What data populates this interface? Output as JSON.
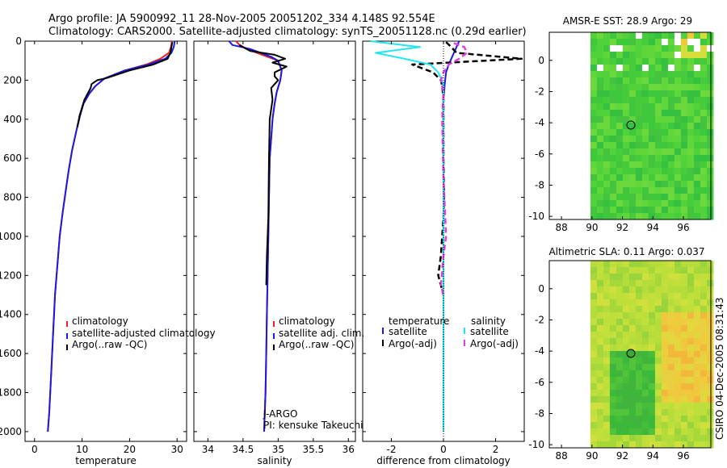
{
  "title": {
    "line1": "Argo profile: JA 5900992_11 28-Nov-2005 20051202_334 4.148S 92.554E",
    "line2": "Climatology: CARS2000. Satellite-adjusted climatology: synTS_20051128.nc (0.29d earlier)"
  },
  "colors": {
    "climatology": "#e8231e",
    "satellite": "#1a1ae6",
    "argo": "#000000",
    "satellite_salinity": "#22e5f0",
    "argo_salinity": "#e040e0"
  },
  "chart_data": [
    {
      "type": "line",
      "xlabel": "temperature",
      "ylabel": "",
      "xlim": [
        -2,
        32
      ],
      "ylim": [
        2050,
        0
      ],
      "xticks": [
        "0",
        "10",
        "20",
        "30"
      ],
      "yticks": [
        "0",
        "200",
        "400",
        "600",
        "800",
        "1000",
        "1200",
        "1400",
        "1600",
        "1800",
        "2000"
      ],
      "legend": [
        "climatology",
        "satellite-adjusted climatology",
        "Argo(..raw -QC)"
      ],
      "series": [
        {
          "name": "climatology",
          "color": "red",
          "x": [
            28.9,
            28.7,
            28.3,
            26.5,
            23.5,
            19,
            14.8,
            12.8,
            11.5,
            10.3,
            9.6,
            8.8,
            7.9,
            7.2,
            6.6,
            5.9,
            5.3,
            4.8,
            4.3,
            3.9,
            3.5,
            3.1,
            2.8
          ],
          "y": [
            0,
            30,
            60,
            90,
            120,
            150,
            190,
            230,
            270,
            320,
            380,
            460,
            560,
            660,
            760,
            880,
            1000,
            1150,
            1300,
            1500,
            1700,
            1900,
            2000
          ]
        },
        {
          "name": "satellite-adjusted climatology",
          "color": "blue",
          "x": [
            29.5,
            29.3,
            28.8,
            27.5,
            24,
            19,
            14.8,
            12.8,
            11.5,
            10.3,
            9.6,
            8.8,
            7.9,
            7.2,
            6.6,
            5.9,
            5.3,
            4.8,
            4.3,
            3.9,
            3.5,
            3.1,
            2.8
          ],
          "y": [
            0,
            30,
            60,
            90,
            120,
            150,
            190,
            230,
            270,
            320,
            380,
            460,
            560,
            660,
            760,
            880,
            1000,
            1150,
            1300,
            1500,
            1700,
            1900,
            2000
          ]
        },
        {
          "name": "Argo(..raw -QC)",
          "color": "black",
          "x": [
            29,
            28.8,
            28.6,
            28,
            25,
            20,
            15,
            13.2,
            12,
            11.8,
            10.5,
            9.5,
            9
          ],
          "y": [
            5,
            30,
            60,
            90,
            120,
            150,
            190,
            200,
            220,
            240,
            300,
            380,
            440
          ]
        }
      ]
    },
    {
      "type": "line",
      "xlabel": "salinity",
      "ylabel": "",
      "xlim": [
        33.8,
        36.1
      ],
      "ylim": [
        2050,
        0
      ],
      "xticks": [
        "34",
        "34.5",
        "35",
        "35.5",
        "36"
      ],
      "legend": [
        "climatology",
        "satellite adj. clim.",
        "Argo(..raw -QC)"
      ],
      "annotations": [
        "J-ARGO",
        "PI: kensuke Takeuchi"
      ],
      "series": [
        {
          "name": "climatology",
          "color": "red",
          "x": [
            34.4,
            34.45,
            34.55,
            34.7,
            34.85,
            35.0,
            35.05,
            35.03,
            34.98,
            34.95,
            34.92,
            34.9,
            34.88,
            34.87,
            34.86,
            34.85,
            34.84,
            34.83,
            34.82,
            34.81,
            34.8
          ],
          "y": [
            0,
            20,
            40,
            60,
            80,
            100,
            150,
            200,
            260,
            320,
            400,
            500,
            600,
            800,
            1000,
            1200,
            1400,
            1600,
            1800,
            1900,
            2000
          ]
        },
        {
          "name": "satellite adj. clim.",
          "color": "blue",
          "x": [
            34.3,
            34.35,
            34.6,
            34.75,
            34.9,
            35.0,
            35.05,
            35.03,
            34.98,
            34.95,
            34.92,
            34.9,
            34.88,
            34.87,
            34.86,
            34.85,
            34.84,
            34.83,
            34.82,
            34.81,
            34.8
          ],
          "y": [
            0,
            20,
            40,
            60,
            80,
            100,
            150,
            200,
            260,
            320,
            400,
            500,
            600,
            800,
            1000,
            1200,
            1400,
            1600,
            1800,
            1900,
            2000
          ]
        },
        {
          "name": "Argo(..raw -QC)",
          "color": "black",
          "x": [
            34.45,
            34.6,
            34.95,
            35.1,
            34.92,
            35.12,
            34.95,
            34.95,
            35.0,
            34.9,
            34.92,
            34.88,
            34.87,
            34.86,
            34.84,
            34.83
          ],
          "y": [
            20,
            50,
            70,
            90,
            110,
            130,
            160,
            180,
            200,
            240,
            300,
            400,
            600,
            900,
            1100,
            1250
          ]
        }
      ]
    },
    {
      "type": "line",
      "xlabel": "difference from climatology",
      "ylabel": "",
      "xlim": [
        -3.1,
        3.1
      ],
      "ylim": [
        2050,
        0
      ],
      "xticks": [
        "-2",
        "0",
        "2"
      ],
      "legend_groups": [
        {
          "title": "temperature",
          "entries": [
            "satellite",
            "Argo(-adj)"
          ]
        },
        {
          "title": "salinity",
          "entries": [
            "satellite",
            "Argo(-adj)"
          ]
        }
      ],
      "series": [
        {
          "name": "temperature satellite",
          "color": "blue",
          "x": [
            0.6,
            0.5,
            0.4,
            0.3,
            0.2,
            0.1,
            0.05,
            0,
            0,
            0,
            0,
            0
          ],
          "y": [
            0,
            30,
            60,
            90,
            120,
            160,
            220,
            300,
            600,
            1000,
            1500,
            2000
          ]
        },
        {
          "name": "temperature Argo(-adj)",
          "color": "black",
          "dashed": true,
          "x": [
            0.1,
            0.3,
            0.5,
            3.0,
            -1.2,
            -0.4,
            -0.1,
            -0.05,
            0,
            0,
            0.02,
            0,
            -0.1,
            -0.2,
            -0.1,
            0
          ],
          "y": [
            5,
            30,
            60,
            90,
            120,
            160,
            200,
            230,
            300,
            600,
            800,
            900,
            1100,
            1200,
            1250,
            1300
          ]
        },
        {
          "name": "salinity satellite",
          "color": "cyan",
          "x": [
            -2.8,
            -0.9,
            -2.6,
            -1.5,
            -0.5,
            -0.2,
            0,
            0,
            0,
            0
          ],
          "y": [
            0,
            30,
            60,
            90,
            120,
            160,
            220,
            400,
            1000,
            2000
          ]
        },
        {
          "name": "salinity Argo(-adj)",
          "color": "magenta",
          "dashed": true,
          "x": [
            0.4,
            0.8,
            0.9,
            0.6,
            0.2,
            0,
            -0.1,
            0,
            -0.05,
            0,
            0.1,
            0,
            -0.1,
            0
          ],
          "y": [
            10,
            30,
            60,
            90,
            120,
            160,
            200,
            260,
            400,
            700,
            1000,
            1100,
            1250,
            1300
          ]
        }
      ]
    },
    {
      "type": "heatmap",
      "title": "AMSR-E SST: 28.9 Argo: 29",
      "xticks": [
        "88",
        "90",
        "92",
        "94",
        "96"
      ],
      "yticks": [
        "0",
        "-2",
        "-4",
        "-6",
        "-8",
        "-10"
      ],
      "xlim": [
        87.2,
        97.8
      ],
      "ylim": [
        -10.2,
        1.8
      ],
      "marker": {
        "lon": 92.554,
        "lat": -4.148
      }
    },
    {
      "type": "heatmap",
      "title": "Altimetric SLA: 0.11 Argo: 0.037",
      "xticks": [
        "88",
        "90",
        "92",
        "94",
        "96"
      ],
      "yticks": [
        "0",
        "-2",
        "-4",
        "-6",
        "-8",
        "-10"
      ],
      "xlim": [
        87.2,
        97.8
      ],
      "ylim": [
        -10.2,
        1.8
      ],
      "marker": {
        "lon": 92.554,
        "lat": -4.148
      }
    }
  ],
  "credit": "CSIRO 04-Dec-2005 08:31:43"
}
